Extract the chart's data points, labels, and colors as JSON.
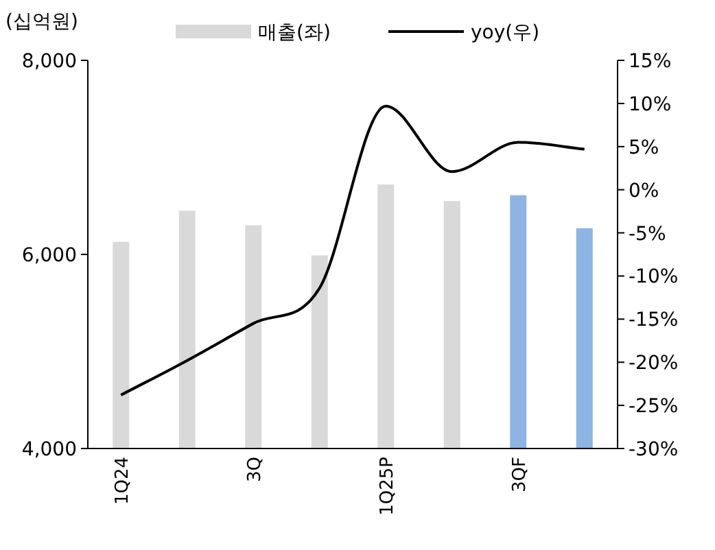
{
  "chart_data": {
    "type": "bar",
    "ylabel": "(십억원)",
    "categories": [
      "1Q24",
      null,
      "3Q",
      null,
      "1Q25P",
      null,
      "3QF",
      null
    ],
    "series": [
      {
        "name": "매출(좌)",
        "color": "#d9d9d9",
        "colors": [
          "#d9d9d9",
          "#d9d9d9",
          "#d9d9d9",
          "#d9d9d9",
          "#d9d9d9",
          "#d9d9d9",
          "#8db4e2",
          "#8db4e2"
        ],
        "values": [
          6130,
          6450,
          6300,
          5990,
          6720,
          6550,
          6610,
          6270
        ]
      },
      {
        "name": "yoy(우)",
        "type": "line",
        "color": "#000000",
        "axis": "y2",
        "values": [
          -23.8,
          -19.8,
          -15.5,
          -11.4,
          9.7,
          2.1,
          5.5,
          4.7
        ]
      }
    ],
    "ylim": [
      4000,
      8000
    ],
    "yticks": [
      {
        "value": 4000,
        "label": "4,000"
      },
      {
        "value": 6000,
        "label": "6,000"
      },
      {
        "value": 8000,
        "label": "8,000"
      }
    ],
    "y2lim": [
      -30,
      15
    ],
    "y2ticks": [
      {
        "value": 15,
        "label": "15%"
      },
      {
        "value": 10,
        "label": "10%"
      },
      {
        "value": 5,
        "label": "5%"
      },
      {
        "value": 0,
        "label": "0%"
      },
      {
        "value": -5,
        "label": "-5%"
      },
      {
        "value": -10,
        "label": "-10%"
      },
      {
        "value": -15,
        "label": "-15%"
      },
      {
        "value": -20,
        "label": "-20%"
      },
      {
        "value": -25,
        "label": "-25%"
      },
      {
        "value": -30,
        "label": "-30%"
      }
    ],
    "legend": "top",
    "grid": false
  }
}
